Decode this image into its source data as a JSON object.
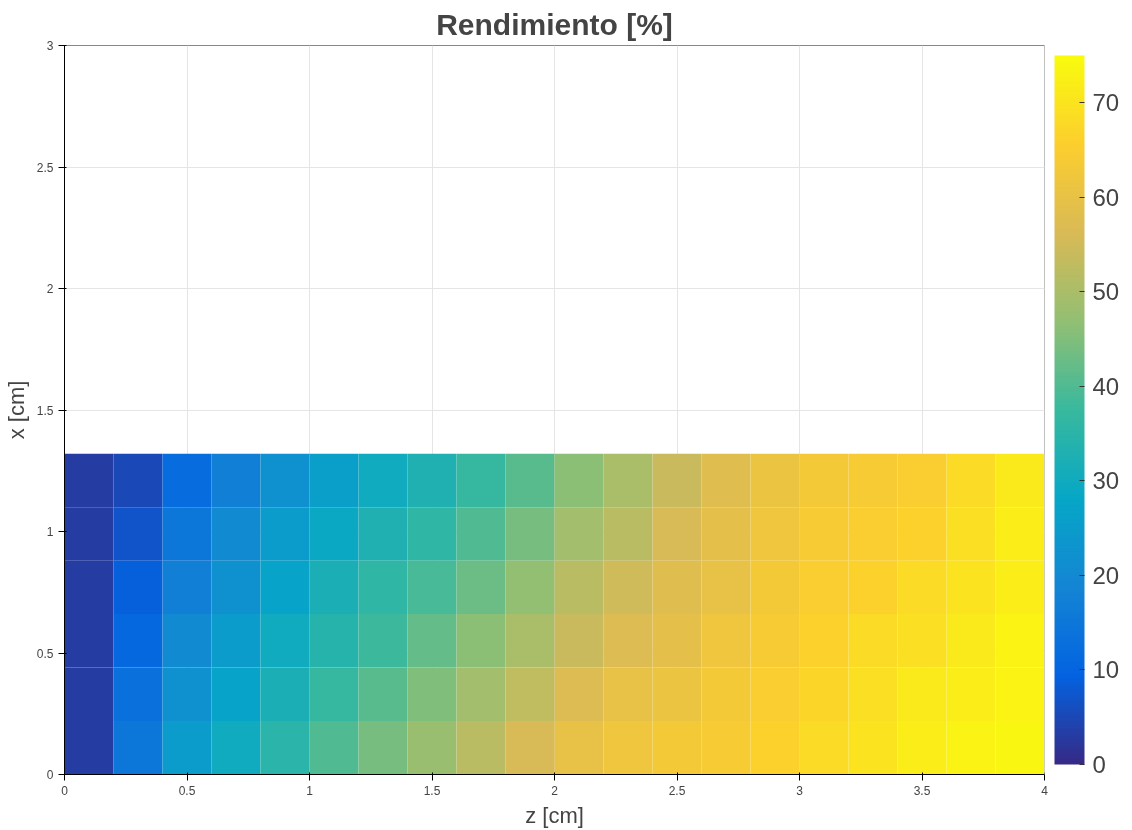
{
  "chart_data": {
    "type": "heatmap",
    "title": "Rendimiento [%]",
    "xlabel": "z [cm]",
    "ylabel": "x [cm]",
    "x": [
      0.1,
      0.3,
      0.5,
      0.7,
      0.9,
      1.1,
      1.3,
      1.5,
      1.7,
      1.9,
      2.1,
      2.3,
      2.5,
      2.7,
      2.9,
      3.1,
      3.3,
      3.5,
      3.7,
      3.9
    ],
    "y": [
      1.21,
      0.99,
      0.77,
      0.55,
      0.33,
      0.11
    ],
    "cells": [
      [
        3,
        5,
        12,
        17,
        22,
        26,
        30,
        33,
        37,
        41,
        46,
        50,
        54,
        58,
        61,
        63,
        64,
        65,
        68,
        71
      ],
      [
        3,
        7,
        15,
        20,
        25,
        29,
        33,
        36,
        40,
        44,
        49,
        52,
        56,
        59,
        62,
        64,
        65,
        66,
        69,
        72
      ],
      [
        3,
        9,
        17,
        22,
        27,
        32,
        36,
        39,
        43,
        47,
        52,
        55,
        58,
        60,
        63,
        65,
        66,
        68,
        70,
        72
      ],
      [
        3,
        11,
        20,
        25,
        30,
        34,
        38,
        42,
        46,
        50,
        54,
        57,
        59,
        62,
        64,
        66,
        68,
        69,
        71,
        73
      ],
      [
        3,
        13,
        22,
        27,
        32,
        37,
        41,
        45,
        49,
        53,
        57,
        60,
        61,
        63,
        65,
        67,
        69,
        71,
        72,
        73
      ],
      [
        3,
        15,
        25,
        30,
        35,
        40,
        44,
        48,
        52,
        56,
        60,
        62,
        63,
        64,
        66,
        68,
        70,
        72,
        73,
        74
      ]
    ],
    "xlim": [
      0,
      4
    ],
    "xticks": [
      0,
      0.5,
      1,
      1.5,
      2,
      2.5,
      3,
      3.5,
      4
    ],
    "ylim": [
      0,
      3
    ],
    "yticks": [
      0,
      0.5,
      1,
      1.5,
      2,
      2.5,
      3
    ],
    "clim": [
      0,
      75
    ],
    "cticks": [
      0,
      10,
      20,
      30,
      40,
      50,
      60,
      70
    ],
    "grid": true
  }
}
